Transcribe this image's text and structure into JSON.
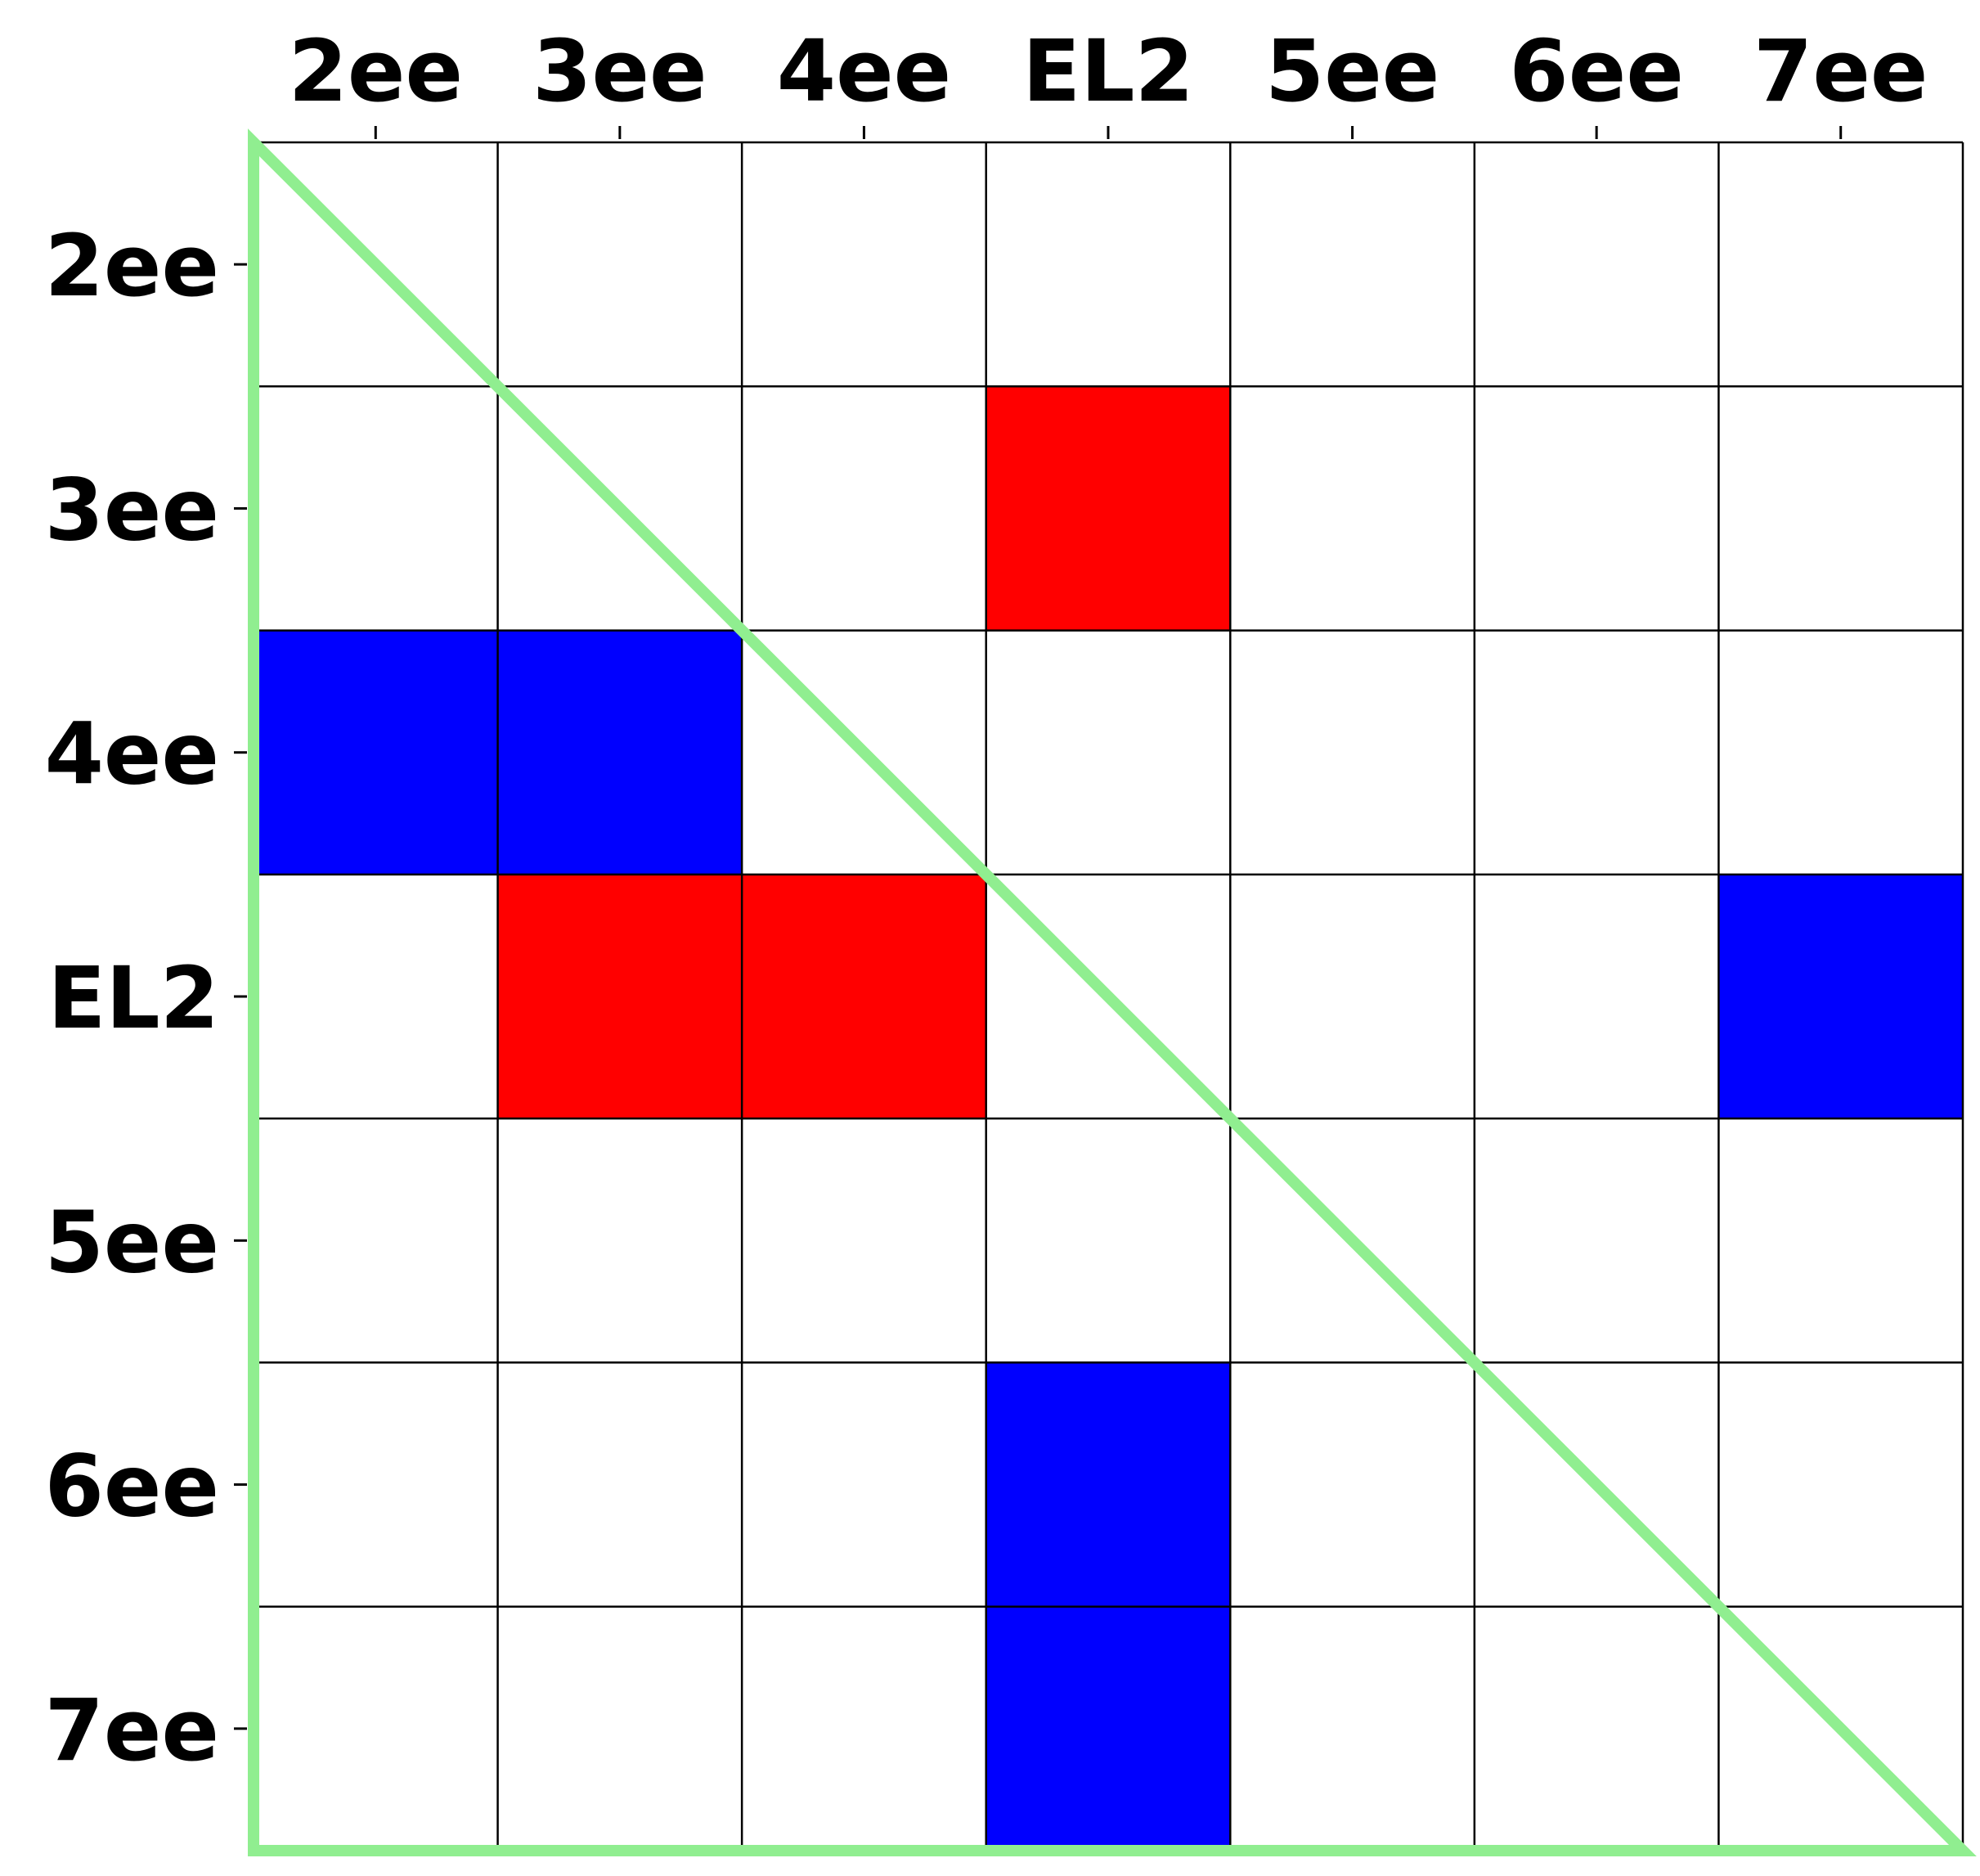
{
  "chart_data": {
    "type": "heatmap",
    "title": "",
    "xlabel": "",
    "ylabel": "",
    "x_categories": [
      "2ee",
      "3ee",
      "4ee",
      "EL2",
      "5ee",
      "6ee",
      "7ee"
    ],
    "y_categories": [
      "2ee",
      "3ee",
      "4ee",
      "EL2",
      "5ee",
      "6ee",
      "7ee"
    ],
    "x_axis_position": "top",
    "grid": true,
    "values": [
      [
        0,
        0,
        0,
        0,
        0,
        0,
        0
      ],
      [
        0,
        0,
        0,
        1,
        0,
        0,
        0
      ],
      [
        -1,
        -1,
        0,
        0,
        0,
        0,
        0
      ],
      [
        0,
        1,
        1,
        0,
        0,
        0,
        -1
      ],
      [
        0,
        0,
        0,
        0,
        0,
        0,
        0
      ],
      [
        0,
        0,
        0,
        -1,
        0,
        0,
        0
      ],
      [
        0,
        0,
        0,
        -1,
        0,
        0,
        0
      ]
    ],
    "color_map": {
      "1": "#ff0000",
      "-1": "#0000ff",
      "0": "#ffffff"
    },
    "overlay": {
      "shape": "lower-triangle",
      "color": "#90ee90"
    }
  }
}
